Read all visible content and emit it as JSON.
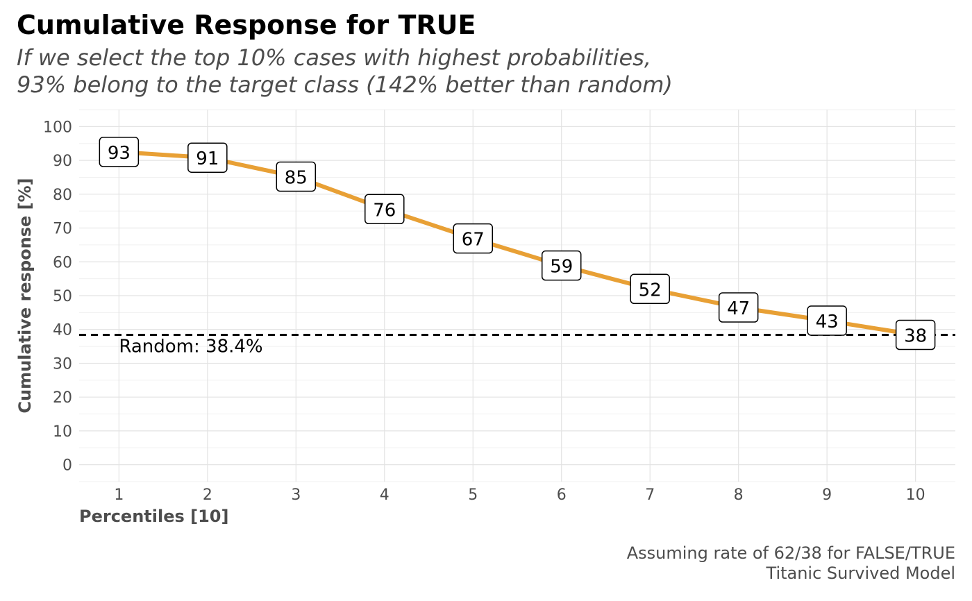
{
  "title": "Cumulative Response for TRUE",
  "subtitle_lines": [
    "If we select the top 10% cases with highest probabilities,",
    "93% belong to the target class (142% better than random)"
  ],
  "caption_lines": [
    "Assuming rate of 62/38 for FALSE/TRUE",
    "Titanic Survived Model"
  ],
  "chart_data": {
    "type": "line",
    "xlabel": "Percentiles [10]",
    "ylabel": "Cumulative response [%]",
    "x": [
      1,
      2,
      3,
      4,
      5,
      6,
      7,
      8,
      9,
      10
    ],
    "series": [
      {
        "values": [
          92.5,
          90.8,
          85.2,
          75.6,
          66.9,
          58.9,
          52.0,
          46.5,
          42.6,
          38.4
        ],
        "labels": [
          "93",
          "91",
          "85",
          "76",
          "67",
          "59",
          "52",
          "47",
          "43",
          "38"
        ],
        "color": "#E8A035"
      }
    ],
    "x_ticks": [
      1,
      2,
      3,
      4,
      5,
      6,
      7,
      8,
      9,
      10
    ],
    "y_ticks": [
      0,
      10,
      20,
      30,
      40,
      50,
      60,
      70,
      80,
      90,
      100
    ],
    "xlim": [
      0.55,
      10.45
    ],
    "ylim": [
      -5,
      105
    ],
    "reference_line": {
      "value": 38.4,
      "label": "Random: 38.4%",
      "color": "#000000",
      "style": "dashed"
    },
    "grid": true,
    "legend": "none"
  }
}
